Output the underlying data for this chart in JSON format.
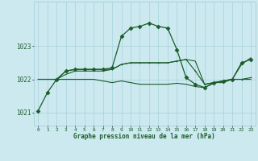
{
  "background_color": "#cce9f0",
  "grid_color": "#9eccd6",
  "line_color": "#1a5c28",
  "marker_color": "#1a5c28",
  "xlabel": "Graphe pression niveau de la mer (hPa)",
  "ylim": [
    1020.6,
    1024.35
  ],
  "xlim": [
    -0.5,
    23.5
  ],
  "yticks": [
    1021,
    1022,
    1023
  ],
  "xticks": [
    0,
    1,
    2,
    3,
    4,
    5,
    6,
    7,
    8,
    9,
    10,
    11,
    12,
    13,
    14,
    15,
    16,
    17,
    18,
    19,
    20,
    21,
    22,
    23
  ],
  "series": [
    {
      "x": [
        0,
        1,
        2,
        3,
        4,
        5,
        6,
        7,
        8,
        9,
        10,
        11,
        12,
        13,
        14,
        15,
        16,
        17,
        18,
        19,
        20,
        21,
        22,
        23
      ],
      "y": [
        1021.05,
        1021.6,
        1022.0,
        1022.25,
        1022.3,
        1022.3,
        1022.3,
        1022.3,
        1022.35,
        1023.3,
        1023.55,
        1023.6,
        1023.7,
        1023.6,
        1023.55,
        1022.9,
        1022.05,
        1021.85,
        1021.75,
        1021.9,
        1021.95,
        1022.0,
        1022.5,
        1022.6
      ],
      "marker": true,
      "linewidth": 0.9,
      "markersize": 2.5,
      "marker_style": "D"
    },
    {
      "x": [
        0,
        1,
        2,
        3,
        4,
        5,
        6,
        7,
        8,
        9,
        10,
        11,
        12,
        13,
        14,
        15,
        16,
        17,
        18,
        19,
        20,
        21,
        22,
        23
      ],
      "y": [
        1022.0,
        1022.0,
        1022.0,
        1022.15,
        1022.25,
        1022.25,
        1022.25,
        1022.25,
        1022.3,
        1022.45,
        1022.5,
        1022.5,
        1022.5,
        1022.5,
        1022.5,
        1022.55,
        1022.6,
        1022.55,
        1021.85,
        1021.9,
        1021.9,
        1022.0,
        1022.45,
        1022.65
      ],
      "marker": false,
      "linewidth": 0.8,
      "markersize": 0
    },
    {
      "x": [
        0,
        1,
        2,
        3,
        4,
        5,
        6,
        7,
        8,
        9,
        10,
        11,
        12,
        13,
        14,
        15,
        16,
        17,
        18,
        19,
        20,
        21,
        22,
        23
      ],
      "y": [
        1022.0,
        1022.0,
        1022.0,
        1022.0,
        1022.0,
        1022.0,
        1022.0,
        1021.95,
        1021.9,
        1021.95,
        1021.9,
        1021.85,
        1021.85,
        1021.85,
        1021.85,
        1021.88,
        1021.85,
        1021.78,
        1021.75,
        1021.88,
        1021.95,
        1022.0,
        1022.0,
        1022.0
      ],
      "marker": false,
      "linewidth": 0.8,
      "markersize": 0
    },
    {
      "x": [
        2,
        3,
        4,
        5,
        6,
        7,
        8,
        9,
        10,
        11,
        12,
        13,
        14,
        15,
        16,
        17,
        18,
        19,
        20,
        21,
        22,
        23
      ],
      "y": [
        1022.0,
        1022.25,
        1022.3,
        1022.3,
        1022.3,
        1022.3,
        1022.3,
        1022.45,
        1022.5,
        1022.5,
        1022.5,
        1022.5,
        1022.5,
        1022.55,
        1022.6,
        1022.25,
        1021.85,
        1021.9,
        1021.95,
        1022.0,
        1022.0,
        1022.05
      ],
      "marker": true,
      "linewidth": 0.8,
      "markersize": 2.0,
      "marker_style": "+"
    }
  ]
}
